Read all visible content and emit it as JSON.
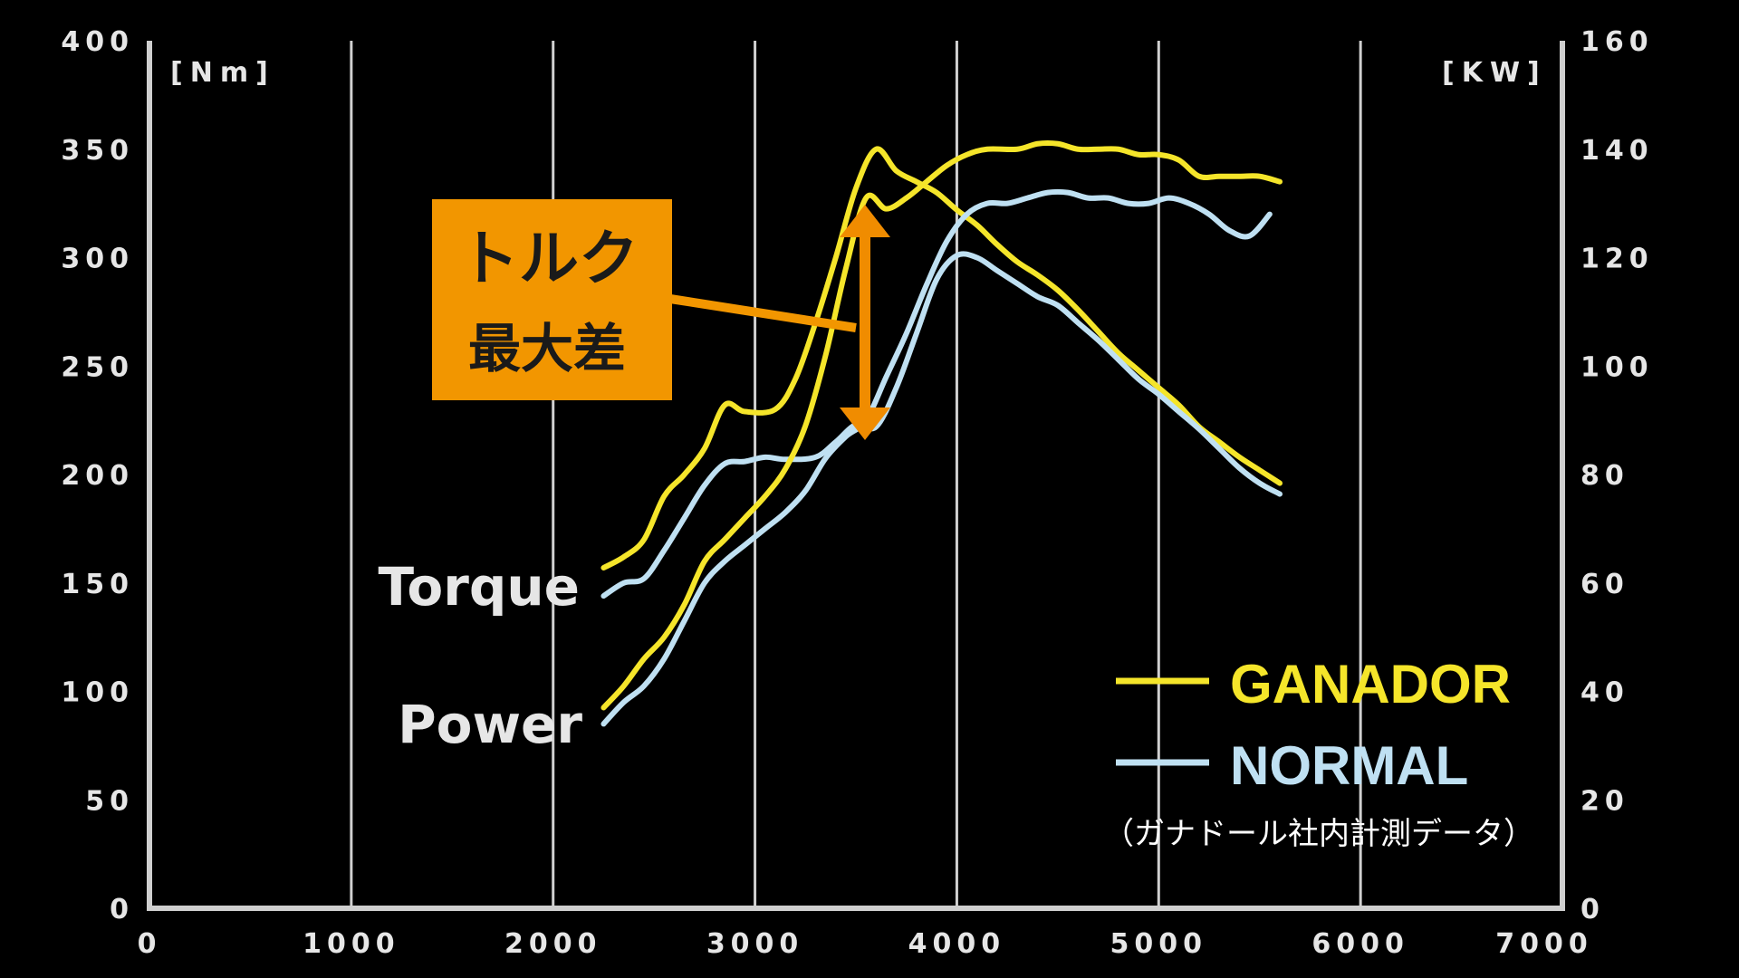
{
  "chart_data": {
    "type": "line",
    "x_ticks": [
      0,
      1000,
      2000,
      3000,
      4000,
      5000,
      6000,
      7000
    ],
    "xlim": [
      0,
      7000
    ],
    "y_left": {
      "unit": "[Nm]",
      "ticks": [
        0,
        50,
        100,
        150,
        200,
        250,
        300,
        350,
        400
      ],
      "ylim": [
        0,
        400
      ]
    },
    "y_right": {
      "unit": "[KW]",
      "ticks": [
        0,
        20,
        40,
        60,
        80,
        100,
        120,
        140,
        160
      ],
      "ylim": [
        0,
        160
      ]
    },
    "grid": {
      "vertical": true,
      "horizontal": false
    },
    "series": [
      {
        "name": "GANADOR",
        "label": "Torque",
        "axis": "left",
        "color": "#f5e52a",
        "points": [
          [
            2250,
            157
          ],
          [
            2350,
            162
          ],
          [
            2450,
            170
          ],
          [
            2550,
            190
          ],
          [
            2650,
            200
          ],
          [
            2750,
            212
          ],
          [
            2850,
            232
          ],
          [
            2950,
            229
          ],
          [
            3100,
            230
          ],
          [
            3200,
            244
          ],
          [
            3300,
            270
          ],
          [
            3400,
            300
          ],
          [
            3500,
            332
          ],
          [
            3600,
            350
          ],
          [
            3700,
            340
          ],
          [
            3800,
            335
          ],
          [
            3900,
            330
          ],
          [
            4000,
            322
          ],
          [
            4100,
            315
          ],
          [
            4200,
            306
          ],
          [
            4300,
            298
          ],
          [
            4400,
            292
          ],
          [
            4500,
            285
          ],
          [
            4600,
            276
          ],
          [
            4700,
            266
          ],
          [
            4800,
            256
          ],
          [
            4900,
            248
          ],
          [
            5000,
            240
          ],
          [
            5100,
            232
          ],
          [
            5200,
            222
          ],
          [
            5300,
            215
          ],
          [
            5400,
            208
          ],
          [
            5500,
            202
          ],
          [
            5600,
            196
          ]
        ]
      },
      {
        "name": "NORMAL",
        "label": "Torque",
        "axis": "left",
        "color": "#bfe0f2",
        "points": [
          [
            2250,
            144
          ],
          [
            2350,
            150
          ],
          [
            2450,
            152
          ],
          [
            2550,
            165
          ],
          [
            2650,
            180
          ],
          [
            2750,
            195
          ],
          [
            2850,
            205
          ],
          [
            2950,
            206
          ],
          [
            3050,
            208
          ],
          [
            3150,
            207
          ],
          [
            3300,
            208
          ],
          [
            3400,
            215
          ],
          [
            3500,
            223
          ],
          [
            3600,
            222
          ],
          [
            3700,
            240
          ],
          [
            3800,
            265
          ],
          [
            3900,
            290
          ],
          [
            4000,
            301
          ],
          [
            4100,
            300
          ],
          [
            4200,
            294
          ],
          [
            4300,
            288
          ],
          [
            4400,
            282
          ],
          [
            4500,
            278
          ],
          [
            4600,
            270
          ],
          [
            4700,
            262
          ],
          [
            4800,
            253
          ],
          [
            4900,
            244
          ],
          [
            5000,
            237
          ],
          [
            5100,
            229
          ],
          [
            5200,
            221
          ],
          [
            5300,
            212
          ],
          [
            5400,
            203
          ],
          [
            5500,
            196
          ],
          [
            5600,
            191
          ]
        ]
      },
      {
        "name": "GANADOR",
        "label": "Power",
        "axis": "right",
        "color": "#f5e52a",
        "points": [
          [
            2250,
            37
          ],
          [
            2350,
            41
          ],
          [
            2450,
            46
          ],
          [
            2550,
            50
          ],
          [
            2650,
            56
          ],
          [
            2750,
            64
          ],
          [
            2850,
            68
          ],
          [
            2950,
            72
          ],
          [
            3050,
            76
          ],
          [
            3150,
            81
          ],
          [
            3250,
            89
          ],
          [
            3350,
            102
          ],
          [
            3450,
            118
          ],
          [
            3550,
            131
          ],
          [
            3650,
            129
          ],
          [
            3750,
            131
          ],
          [
            3850,
            134
          ],
          [
            3950,
            137
          ],
          [
            4050,
            139
          ],
          [
            4150,
            140
          ],
          [
            4300,
            140
          ],
          [
            4400,
            141
          ],
          [
            4500,
            141
          ],
          [
            4600,
            140
          ],
          [
            4700,
            140
          ],
          [
            4800,
            140
          ],
          [
            4900,
            139
          ],
          [
            5000,
            139
          ],
          [
            5100,
            138
          ],
          [
            5200,
            135
          ],
          [
            5300,
            135
          ],
          [
            5400,
            135
          ],
          [
            5500,
            135
          ],
          [
            5600,
            134
          ]
        ]
      },
      {
        "name": "NORMAL",
        "label": "Power",
        "axis": "right",
        "color": "#bfe0f2",
        "points": [
          [
            2250,
            34
          ],
          [
            2350,
            38
          ],
          [
            2450,
            41
          ],
          [
            2550,
            46
          ],
          [
            2650,
            53
          ],
          [
            2750,
            60
          ],
          [
            2850,
            64
          ],
          [
            2950,
            67
          ],
          [
            3050,
            70
          ],
          [
            3150,
            73
          ],
          [
            3250,
            77
          ],
          [
            3350,
            83
          ],
          [
            3450,
            87
          ],
          [
            3550,
            90
          ],
          [
            3650,
            98
          ],
          [
            3750,
            106
          ],
          [
            3850,
            115
          ],
          [
            3950,
            123
          ],
          [
            4050,
            128
          ],
          [
            4150,
            130
          ],
          [
            4250,
            130
          ],
          [
            4350,
            131
          ],
          [
            4450,
            132
          ],
          [
            4550,
            132
          ],
          [
            4650,
            131
          ],
          [
            4750,
            131
          ],
          [
            4850,
            130
          ],
          [
            4950,
            130
          ],
          [
            5050,
            131
          ],
          [
            5150,
            130
          ],
          [
            5250,
            128
          ],
          [
            5350,
            125
          ],
          [
            5450,
            124
          ],
          [
            5550,
            128
          ]
        ]
      }
    ]
  },
  "labels": {
    "torque": "Torque",
    "power": "Power"
  },
  "legend": [
    {
      "name": "GANADOR",
      "color": "#f5e52a"
    },
    {
      "name": "NORMAL",
      "color": "#bfe0f2"
    }
  ],
  "note": "（ガナドール社内計測データ）",
  "callout": {
    "line1": "トルク",
    "line2": "最大差",
    "box_color": "#f29600",
    "arrow_color": "#f08c00"
  }
}
